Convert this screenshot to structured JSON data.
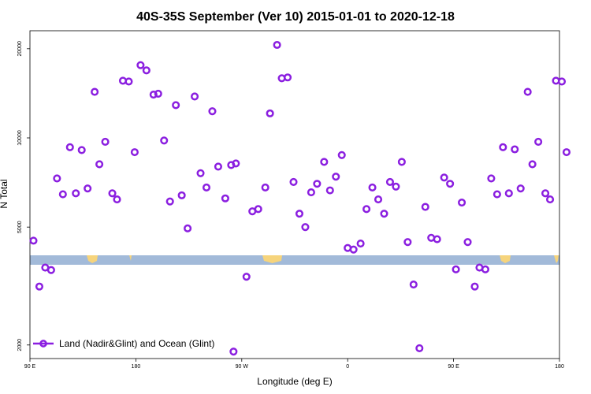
{
  "chart_data": {
    "type": "scatter",
    "title": "40S-35S September (Ver 10)   2015-01-01 to 2020-12-18",
    "xlabel": "Longitude (deg E)",
    "ylabel": "N Total",
    "x_ticks": [
      {
        "value": 90,
        "label": "90 E"
      },
      {
        "value": 180,
        "label": "180"
      },
      {
        "value": 270,
        "label": "90 W"
      },
      {
        "value": 360,
        "label": "0"
      },
      {
        "value": 450,
        "label": "90 E"
      },
      {
        "value": 540,
        "label": "180"
      }
    ],
    "y_ticks": [
      {
        "value": 2000,
        "label": "2000"
      },
      {
        "value": 5000,
        "label": "5000"
      },
      {
        "value": 10000,
        "label": "10000"
      },
      {
        "value": 20000,
        "label": "20000"
      }
    ],
    "xlim": [
      90,
      540
    ],
    "ylim": [
      1800,
      23000
    ],
    "y_scale": "log",
    "legend": {
      "position": "bottom-left"
    },
    "series": [
      {
        "name": "Land (Nadir&Glint) and Ocean (Glint)",
        "color": "#8b1fe0",
        "marker": "open-circle",
        "points": [
          [
            93,
            4500
          ],
          [
            98,
            3150
          ],
          [
            103,
            3650
          ],
          [
            108,
            3580
          ],
          [
            113,
            7300
          ],
          [
            118,
            6450
          ],
          [
            124,
            9300
          ],
          [
            129,
            6500
          ],
          [
            134,
            9100
          ],
          [
            139,
            6750
          ],
          [
            145,
            14300
          ],
          [
            149,
            8150
          ],
          [
            154,
            9700
          ],
          [
            160,
            6500
          ],
          [
            164,
            6200
          ],
          [
            169,
            15600
          ],
          [
            174,
            15500
          ],
          [
            179,
            8950
          ],
          [
            184,
            17600
          ],
          [
            189,
            16900
          ],
          [
            195,
            14000
          ],
          [
            199,
            14100
          ],
          [
            204,
            9800
          ],
          [
            209,
            6100
          ],
          [
            214,
            12900
          ],
          [
            219,
            6400
          ],
          [
            224,
            4950
          ],
          [
            230,
            13800
          ],
          [
            235,
            7600
          ],
          [
            240,
            6800
          ],
          [
            245,
            12300
          ],
          [
            250,
            8000
          ],
          [
            256,
            6250
          ],
          [
            261,
            8100
          ],
          [
            265,
            8200
          ],
          [
            274,
            3400
          ],
          [
            279,
            5650
          ],
          [
            284,
            5750
          ],
          [
            290,
            6800
          ],
          [
            294,
            12100
          ],
          [
            300,
            20600
          ],
          [
            304,
            15900
          ],
          [
            309,
            16000
          ],
          [
            314,
            7100
          ],
          [
            319,
            5550
          ],
          [
            324,
            5000
          ],
          [
            329,
            6550
          ],
          [
            334,
            7000
          ],
          [
            340,
            8300
          ],
          [
            345,
            6650
          ],
          [
            350,
            7400
          ],
          [
            355,
            8750
          ],
          [
            360,
            4250
          ],
          [
            365,
            4200
          ],
          [
            371,
            4400
          ],
          [
            376,
            5750
          ],
          [
            381,
            6800
          ],
          [
            386,
            6200
          ],
          [
            391,
            5550
          ],
          [
            396,
            7100
          ],
          [
            401,
            6850
          ],
          [
            406,
            8300
          ],
          [
            411,
            4450
          ],
          [
            416,
            3200
          ],
          [
            421,
            1950
          ],
          [
            426,
            5850
          ],
          [
            431,
            4600
          ],
          [
            436,
            4550
          ],
          [
            442,
            7350
          ],
          [
            447,
            7000
          ],
          [
            452,
            3600
          ],
          [
            457,
            6050
          ],
          [
            462,
            4450
          ],
          [
            468,
            3150
          ],
          [
            472,
            3650
          ],
          [
            477,
            3600
          ],
          [
            482,
            7300
          ],
          [
            487,
            6450
          ],
          [
            492,
            9300
          ],
          [
            497,
            6500
          ],
          [
            502,
            9150
          ],
          [
            507,
            6750
          ],
          [
            513,
            14300
          ],
          [
            517,
            8150
          ],
          [
            522,
            9700
          ],
          [
            528,
            6500
          ],
          [
            532,
            6200
          ],
          [
            537,
            15600
          ],
          [
            542,
            15500
          ],
          [
            546,
            8950
          ],
          [
            263,
            1900
          ]
        ]
      }
    ],
    "map_strip": {
      "ocean_color": "#a2bad9",
      "land_color": "#f6d47c"
    }
  }
}
